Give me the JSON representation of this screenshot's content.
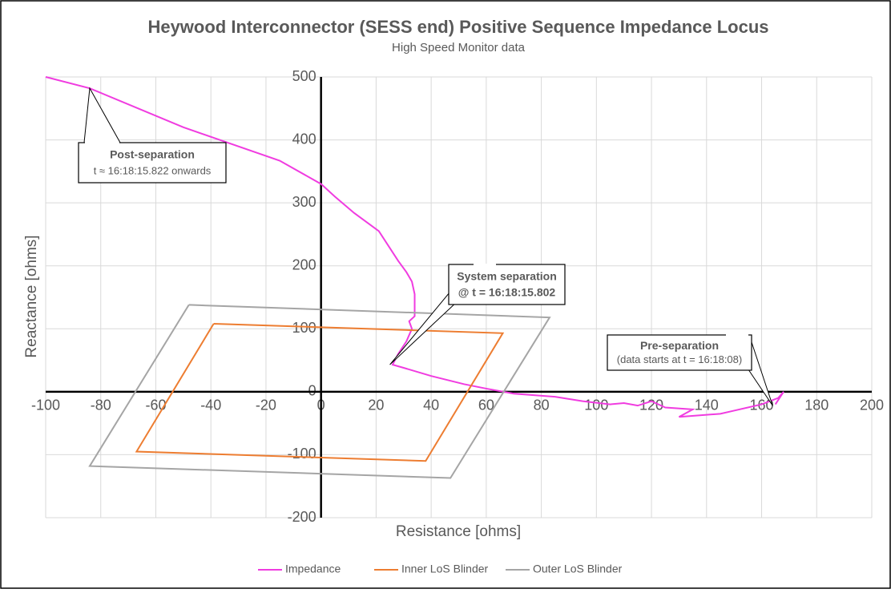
{
  "chart_data": {
    "type": "line",
    "title": "Heywood Interconnector (SESS end) Positive Sequence Impedance Locus",
    "subtitle": "High Speed Monitor data",
    "x_label": "Resistance [ohms]",
    "y_label": "Reactance [ohms]",
    "xlim": [
      -100,
      200
    ],
    "ylim": [
      -200,
      500
    ],
    "xticks": [
      -100,
      -80,
      -60,
      -40,
      -20,
      0,
      20,
      40,
      60,
      80,
      100,
      120,
      140,
      160,
      180,
      200
    ],
    "yticks": [
      -200,
      -100,
      0,
      100,
      200,
      300,
      400,
      500
    ],
    "grid": true,
    "legend": "bottom",
    "series": [
      {
        "name": "Impedance",
        "color": "#f03ce0",
        "x": [
          -100,
          -84,
          -50,
          -15,
          0,
          5,
          12,
          21,
          28,
          31,
          33,
          34,
          34,
          32,
          33,
          31,
          28,
          26,
          30,
          40,
          52,
          60,
          70,
          85,
          95,
          105,
          110,
          115,
          120,
          125,
          135,
          130,
          145,
          150,
          160,
          166,
          168,
          165
        ],
        "values": [
          500,
          482,
          420,
          367,
          330,
          310,
          284,
          255,
          208,
          190,
          175,
          155,
          120,
          112,
          100,
          80,
          60,
          43,
          38,
          25,
          12,
          5,
          -3,
          -8,
          -15,
          -20,
          -18,
          -22,
          -15,
          -25,
          -28,
          -40,
          -35,
          -30,
          -20,
          -10,
          0,
          -20
        ]
      },
      {
        "name": "Inner LoS Blinder",
        "color": "#ed7d31",
        "x": [
          -39,
          66,
          38,
          -67,
          -39
        ],
        "values": [
          108,
          93,
          -110,
          -95,
          108
        ]
      },
      {
        "name": "Outer LoS Blinder",
        "color": "#a5a5a5",
        "x": [
          -48,
          83,
          47,
          -84,
          -48
        ],
        "values": [
          138,
          118,
          -137,
          -118,
          138
        ]
      }
    ],
    "annotations": [
      {
        "title": "Post-separation",
        "text": "t ≈ 16:18:15.822 onwards",
        "xy": [
          -84,
          482
        ]
      },
      {
        "title": "System separation",
        "text": "@ t = 16:18:15.802",
        "xy": [
          25,
          43
        ]
      },
      {
        "title": "Pre-separation",
        "text": "(data starts at t = 16:18:08)",
        "xy": [
          164,
          -22
        ]
      }
    ]
  }
}
